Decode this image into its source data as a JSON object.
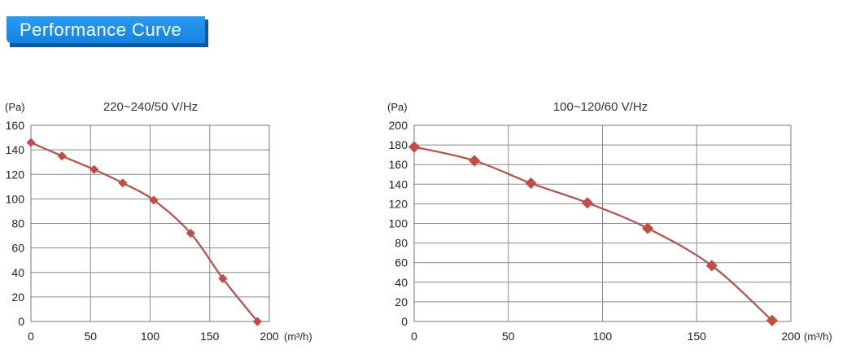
{
  "header": {
    "title": "Performance Curve"
  },
  "colors": {
    "banner": "#1e8eea",
    "curve": "#b5514a",
    "marker": "#c94a43",
    "grid": "#8a8a8a"
  },
  "chart_data": [
    {
      "type": "line",
      "title": "220~240/50 V/Hz",
      "ylabel": "(Pa)",
      "xlabel": "(m³/h)",
      "xlim": [
        0,
        200
      ],
      "ylim": [
        0,
        160
      ],
      "xticks": [
        0,
        50,
        100,
        150,
        200
      ],
      "yticks": [
        0,
        20,
        40,
        60,
        80,
        100,
        120,
        140,
        160
      ],
      "grid": true,
      "markers": "diamond",
      "points": [
        {
          "x": 0,
          "y": 146
        },
        {
          "x": 26,
          "y": 135
        },
        {
          "x": 53,
          "y": 124
        },
        {
          "x": 77,
          "y": 113
        },
        {
          "x": 103,
          "y": 99
        },
        {
          "x": 134,
          "y": 72
        },
        {
          "x": 161,
          "y": 35
        },
        {
          "x": 190,
          "y": 0
        }
      ]
    },
    {
      "type": "line",
      "title": "100~120/60 V/Hz",
      "ylabel": "(Pa)",
      "xlabel": "(m³/h)",
      "xlim": [
        0,
        200
      ],
      "ylim": [
        0,
        200
      ],
      "xticks": [
        0,
        50,
        100,
        150,
        200
      ],
      "yticks": [
        0,
        20,
        40,
        60,
        80,
        100,
        120,
        140,
        160,
        180,
        200
      ],
      "grid": true,
      "markers": "diamond",
      "points": [
        {
          "x": 0,
          "y": 178
        },
        {
          "x": 32,
          "y": 164
        },
        {
          "x": 62,
          "y": 141
        },
        {
          "x": 92,
          "y": 121
        },
        {
          "x": 124,
          "y": 95
        },
        {
          "x": 158,
          "y": 57
        },
        {
          "x": 190,
          "y": 1
        }
      ]
    }
  ]
}
